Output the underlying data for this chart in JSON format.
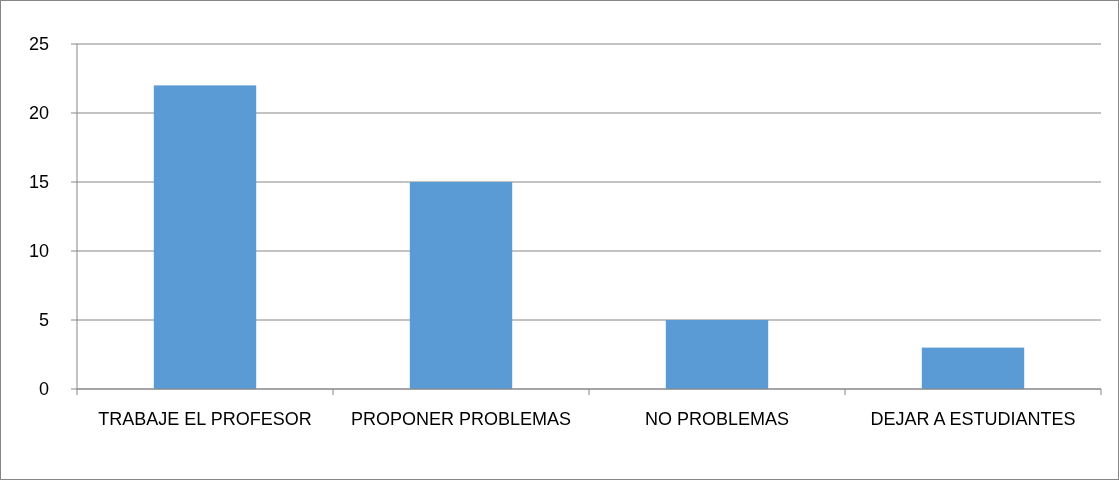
{
  "chart_data": {
    "type": "bar",
    "categories": [
      "TRABAJE EL PROFESOR",
      "PROPONER PROBLEMAS",
      "NO PROBLEMAS",
      "DEJAR A ESTUDIANTES"
    ],
    "values": [
      22,
      15,
      5,
      3
    ],
    "color": "#5b9bd5",
    "ylim": [
      0,
      25
    ],
    "yticks": [
      0,
      5,
      10,
      15,
      20,
      25
    ],
    "grid": "y"
  }
}
